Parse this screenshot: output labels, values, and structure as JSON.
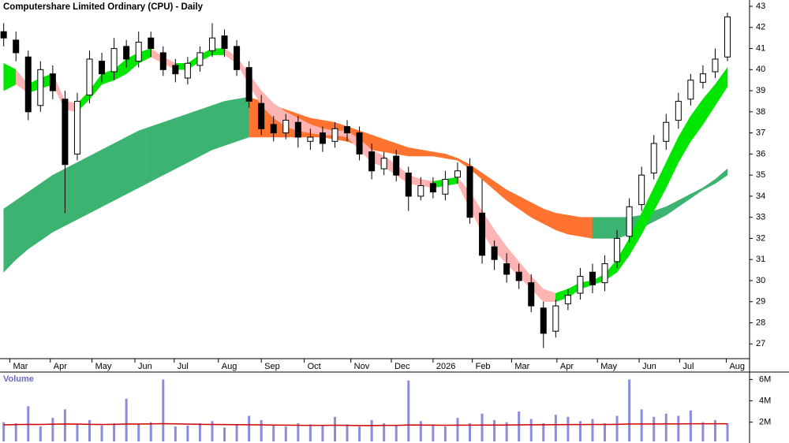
{
  "chart_data": [
    {
      "type": "candlestick",
      "title": "Computershare Limited Ordinary (CPU) - Daily",
      "xlim": [
        -0.3,
        60.8
      ],
      "ylim": [
        26.3,
        43.3
      ],
      "yticks": [
        27,
        28,
        29,
        30,
        31,
        32,
        33,
        34,
        35,
        36,
        37,
        38,
        39,
        40,
        41,
        42,
        43
      ],
      "xticks": [
        {
          "value": 0.5,
          "label": "Mar"
        },
        {
          "value": 3.8,
          "label": "Apr"
        },
        {
          "value": 7.2,
          "label": "May"
        },
        {
          "value": 10.7,
          "label": "Jun"
        },
        {
          "value": 13.9,
          "label": "Jul"
        },
        {
          "value": 17.5,
          "label": "Aug"
        },
        {
          "value": 21.0,
          "label": "Sep"
        },
        {
          "value": 24.5,
          "label": "Oct"
        },
        {
          "value": 28.3,
          "label": "Nov"
        },
        {
          "value": 31.6,
          "label": "Dec"
        },
        {
          "value": 35.0,
          "label": "2026"
        },
        {
          "value": 38.2,
          "label": "Feb"
        },
        {
          "value": 41.4,
          "label": "Mar"
        },
        {
          "value": 45.1,
          "label": "Apr"
        },
        {
          "value": 48.4,
          "label": "May"
        },
        {
          "value": 51.8,
          "label": "Jun"
        },
        {
          "value": 55.1,
          "label": "Jul"
        },
        {
          "value": 58.9,
          "label": "Aug"
        }
      ],
      "x": [
        0,
        1,
        2,
        3,
        4,
        5,
        6,
        7,
        8,
        9,
        10,
        11,
        12,
        13,
        14,
        15,
        16,
        17,
        18,
        19,
        20,
        21,
        22,
        23,
        24,
        25,
        26,
        27,
        28,
        29,
        30,
        31,
        32,
        33,
        34,
        35,
        36,
        37,
        38,
        39,
        40,
        41,
        42,
        43,
        44,
        45,
        46,
        47,
        48,
        49,
        50,
        51,
        52,
        53,
        54,
        55,
        56,
        57,
        58,
        59
      ],
      "open": [
        41.8,
        41.4,
        40.6,
        38.3,
        39.8,
        38.6,
        36.0,
        38.8,
        40.4,
        39.9,
        41.1,
        40.4,
        41.5,
        40.8,
        40.2,
        39.6,
        40.2,
        40.9,
        41.6,
        41.1,
        40.1,
        38.4,
        37.4,
        37.0,
        37.5,
        36.6,
        37.0,
        36.6,
        37.3,
        37.0,
        36.1,
        35.3,
        35.9,
        35.1,
        34.0,
        34.6,
        34.1,
        34.9,
        35.4,
        33.2,
        31.6,
        30.8,
        30.4,
        29.9,
        28.7,
        27.6,
        28.9,
        29.4,
        30.4,
        29.9,
        30.9,
        32.1,
        33.6,
        35.1,
        36.6,
        37.6,
        38.6,
        39.4,
        39.9,
        40.6
      ],
      "high": [
        42.2,
        41.8,
        40.9,
        40.4,
        40.2,
        39.0,
        38.9,
        40.9,
        40.8,
        41.5,
        41.4,
        41.8,
        41.8,
        41.1,
        40.5,
        40.6,
        41.1,
        42.2,
        41.9,
        41.4,
        40.4,
        38.8,
        37.8,
        37.9,
        37.8,
        37.2,
        37.3,
        37.5,
        37.6,
        37.3,
        36.5,
        36.1,
        36.2,
        35.4,
        34.9,
        34.9,
        35.2,
        35.6,
        35.8,
        34.8,
        31.9,
        31.3,
        30.8,
        30.3,
        29.0,
        29.1,
        29.6,
        30.6,
        30.8,
        31.2,
        32.4,
        33.9,
        35.4,
        36.9,
        37.9,
        38.9,
        39.8,
        40.2,
        41.0,
        42.7
      ],
      "low": [
        41.1,
        40.4,
        37.6,
        38.0,
        38.6,
        33.2,
        35.7,
        38.4,
        39.4,
        39.5,
        40.1,
        40.1,
        40.6,
        39.7,
        39.4,
        39.3,
        39.9,
        40.6,
        40.6,
        39.7,
        38.2,
        36.9,
        36.6,
        36.7,
        36.3,
        36.2,
        36.1,
        36.3,
        36.6,
        35.7,
        34.8,
        35.0,
        34.7,
        33.3,
        33.8,
        33.9,
        33.8,
        34.6,
        32.7,
        30.8,
        30.5,
        29.9,
        29.6,
        28.5,
        26.8,
        27.3,
        28.6,
        29.1,
        29.4,
        29.5,
        30.6,
        31.8,
        33.3,
        34.8,
        36.2,
        37.2,
        38.3,
        39.1,
        39.6,
        40.4
      ],
      "close": [
        41.5,
        40.8,
        38.0,
        40.0,
        39.0,
        35.5,
        38.5,
        40.5,
        39.8,
        41.0,
        40.5,
        41.3,
        41.0,
        40.0,
        39.8,
        40.3,
        40.8,
        41.5,
        41.0,
        40.0,
        38.5,
        37.2,
        37.0,
        37.6,
        36.8,
        36.8,
        36.5,
        37.2,
        37.0,
        36.0,
        35.2,
        35.8,
        35.0,
        34.0,
        34.5,
        34.2,
        34.8,
        35.2,
        33.0,
        31.2,
        31.0,
        30.3,
        30.0,
        28.8,
        27.5,
        28.8,
        29.3,
        30.2,
        29.8,
        30.8,
        32.0,
        33.5,
        35.0,
        36.5,
        37.5,
        38.5,
        39.5,
        39.8,
        40.5,
        42.5
      ],
      "up_color": "#ffffff",
      "down_color": "#000000",
      "bands": [
        {
          "color_up": "#3cb371",
          "color_down": "#ff7330",
          "upper": [
            33.4,
            33.8,
            34.2,
            34.6,
            35.0,
            35.3,
            35.6,
            35.9,
            36.2,
            36.5,
            36.8,
            37.1,
            37.3,
            37.5,
            37.7,
            37.9,
            38.1,
            38.3,
            38.5,
            38.6,
            38.7,
            38.5,
            38.3,
            38.1,
            37.9,
            37.7,
            37.6,
            37.5,
            37.3,
            37.1,
            36.9,
            36.7,
            36.5,
            36.3,
            36.2,
            36.1,
            36.0,
            35.8,
            35.5,
            35.1,
            34.7,
            34.3,
            34.0,
            33.7,
            33.4,
            33.2,
            33.1,
            33.0,
            33.0,
            33.0,
            33.0,
            33.0,
            33.1,
            33.3,
            33.5,
            33.8,
            34.1,
            34.4,
            34.8,
            35.3
          ],
          "lower": [
            30.4,
            31.0,
            31.5,
            31.9,
            32.3,
            32.6,
            32.9,
            33.2,
            33.5,
            33.8,
            34.1,
            34.4,
            34.7,
            35.0,
            35.3,
            35.6,
            35.9,
            36.2,
            36.4,
            36.6,
            36.8,
            36.8,
            36.8,
            36.8,
            36.8,
            36.8,
            36.8,
            36.7,
            36.6,
            36.4,
            36.2,
            36.1,
            36.0,
            35.9,
            35.9,
            35.9,
            35.8,
            35.7,
            35.3,
            34.8,
            34.3,
            33.8,
            33.4,
            33.0,
            32.7,
            32.4,
            32.2,
            32.1,
            32.0,
            32.0,
            32.0,
            32.2,
            32.5,
            32.8,
            33.1,
            33.5,
            33.9,
            34.3,
            34.6,
            35.0
          ]
        },
        {
          "color_up": "#00e600",
          "color_down": "#ffb4b4",
          "upper": [
            40.3,
            40.0,
            39.3,
            39.6,
            39.8,
            38.5,
            38.4,
            39.0,
            39.8,
            40.0,
            40.5,
            40.8,
            41.0,
            40.6,
            40.3,
            40.3,
            40.7,
            41.0,
            41.0,
            40.6,
            39.8,
            39.0,
            38.4,
            38.0,
            37.7,
            37.4,
            37.2,
            37.1,
            37.1,
            36.7,
            36.2,
            35.9,
            35.5,
            35.0,
            34.8,
            34.7,
            34.8,
            34.9,
            34.2,
            33.3,
            32.4,
            31.6,
            30.9,
            30.2,
            29.6,
            29.4,
            29.6,
            29.9,
            30.0,
            30.3,
            31.0,
            32.0,
            33.2,
            34.4,
            35.6,
            36.8,
            37.8,
            38.6,
            39.3,
            40.1
          ],
          "lower": [
            39.0,
            39.3,
            38.9,
            39.1,
            39.3,
            38.1,
            38.0,
            38.6,
            39.3,
            39.5,
            39.8,
            40.3,
            40.6,
            40.3,
            40.0,
            40.0,
            40.4,
            40.7,
            40.7,
            40.3,
            39.3,
            38.3,
            37.7,
            37.3,
            37.1,
            37.0,
            36.9,
            36.9,
            36.8,
            36.2,
            35.6,
            35.4,
            35.0,
            34.6,
            34.5,
            34.4,
            34.5,
            34.6,
            33.4,
            32.3,
            31.4,
            30.8,
            30.2,
            29.6,
            29.0,
            29.0,
            29.2,
            29.6,
            29.8,
            30.0,
            30.4,
            31.2,
            32.2,
            33.3,
            34.4,
            35.6,
            36.6,
            37.4,
            38.3,
            39.2
          ]
        }
      ]
    },
    {
      "type": "bar",
      "title": "Volume",
      "xlim": [
        -0.3,
        60.8
      ],
      "ylim": [
        200000,
        6400000
      ],
      "yticks": [
        {
          "value": 2000000,
          "label": "2M"
        },
        {
          "value": 4000000,
          "label": "4M"
        },
        {
          "value": 6000000,
          "label": "6M"
        }
      ],
      "x": [
        0,
        1,
        2,
        3,
        4,
        5,
        6,
        7,
        8,
        9,
        10,
        11,
        12,
        13,
        14,
        15,
        16,
        17,
        18,
        19,
        20,
        21,
        22,
        23,
        24,
        25,
        26,
        27,
        28,
        29,
        30,
        31,
        32,
        33,
        34,
        35,
        36,
        37,
        38,
        39,
        40,
        41,
        42,
        43,
        44,
        45,
        46,
        47,
        48,
        49,
        50,
        51,
        52,
        53,
        54,
        55,
        56,
        57,
        58,
        59
      ],
      "values": [
        2000000,
        1900000,
        3500000,
        1600000,
        2400000,
        3200000,
        1800000,
        2200000,
        1700000,
        1900000,
        4200000,
        1800000,
        2000000,
        6000000,
        1600000,
        1700000,
        1900000,
        2100000,
        1500000,
        1800000,
        2600000,
        2200000,
        1700000,
        1600000,
        1900000,
        1800000,
        1700000,
        2500000,
        1800000,
        1600000,
        2200000,
        1900000,
        1700000,
        5900000,
        2100000,
        1800000,
        1600000,
        2400000,
        1900000,
        2800000,
        2200000,
        2000000,
        3000000,
        2300000,
        1900000,
        2700000,
        2500000,
        2100000,
        2300000,
        1900000,
        2600000,
        6000000,
        3200000,
        2500000,
        2800000,
        2600000,
        3100000,
        2000000,
        2200000,
        1900000
      ],
      "color": "#8c8cdc",
      "average": [
        1750000,
        1780000,
        1800000,
        1790000,
        1810000,
        1830000,
        1820000,
        1800000,
        1790000,
        1800000,
        1830000,
        1820000,
        1840000,
        1860000,
        1840000,
        1820000,
        1800000,
        1790000,
        1780000,
        1770000,
        1760000,
        1750000,
        1730000,
        1720000,
        1710000,
        1700000,
        1700000,
        1710000,
        1700000,
        1690000,
        1690000,
        1700000,
        1700000,
        1740000,
        1730000,
        1720000,
        1710000,
        1720000,
        1720000,
        1730000,
        1730000,
        1740000,
        1750000,
        1760000,
        1760000,
        1770000,
        1780000,
        1780000,
        1790000,
        1790000,
        1800000,
        1830000,
        1830000,
        1830000,
        1840000,
        1840000,
        1850000,
        1850000,
        1850000,
        1850000
      ],
      "average_color": "#d00000"
    }
  ]
}
